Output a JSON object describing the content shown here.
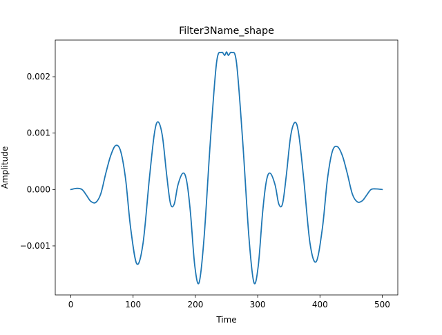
{
  "chart_data": {
    "type": "line",
    "title": "Filter3Name_shape",
    "xlabel": "Time",
    "ylabel": "Amplitude",
    "xlim": [
      -25,
      525
    ],
    "ylim": [
      -0.00187,
      0.00265
    ],
    "xticks": [
      0,
      100,
      200,
      300,
      400,
      500
    ],
    "xtick_labels": [
      "0",
      "100",
      "200",
      "300",
      "400",
      "500"
    ],
    "yticks": [
      -0.001,
      0.0,
      0.001,
      0.002
    ],
    "ytick_labels": [
      "−0.001",
      "0.000",
      "0.001",
      "0.002"
    ],
    "grid": false,
    "legend": "none",
    "series": [
      {
        "color": "#1f77b4",
        "x": [
          0,
          10,
          18,
          25,
          32,
          40,
          48,
          56,
          64,
          72,
          80,
          88,
          96,
          106,
          116,
          126,
          134,
          140,
          147,
          154,
          160,
          166,
          172,
          180,
          186,
          192,
          199,
          206,
          214,
          224,
          234,
          242,
          247,
          250,
          253,
          258,
          266,
          276,
          286,
          294,
          301,
          308,
          314,
          320,
          328,
          334,
          340,
          346,
          353,
          360,
          366,
          374,
          384,
          394,
          404,
          412,
          420,
          428,
          436,
          444,
          452,
          460,
          468,
          475,
          482,
          490,
          500
        ],
        "y": [
          0.0,
          2e-05,
          0.0,
          -0.0001,
          -0.00021,
          -0.00023,
          -8e-05,
          0.00028,
          0.0006,
          0.00078,
          0.00068,
          0.00018,
          -0.00068,
          -0.00132,
          -0.00095,
          0.00018,
          0.00098,
          0.0012,
          0.00095,
          0.00025,
          -0.00025,
          -0.00026,
          8e-05,
          0.00029,
          0.00015,
          -0.0004,
          -0.00135,
          -0.00165,
          -0.00085,
          0.00085,
          0.00225,
          0.00243,
          0.00238,
          0.00244,
          0.00238,
          0.00243,
          0.00225,
          0.00085,
          -0.00085,
          -0.00165,
          -0.00135,
          -0.0004,
          0.00015,
          0.00029,
          8e-05,
          -0.00026,
          -0.00025,
          0.00025,
          0.00095,
          0.00119,
          0.00098,
          0.00018,
          -0.00095,
          -0.00128,
          -0.00068,
          0.00018,
          0.00068,
          0.00076,
          0.0006,
          0.00028,
          -8e-05,
          -0.00022,
          -0.0002,
          -0.0001,
          0.0,
          1e-05,
          0.0
        ]
      }
    ]
  }
}
